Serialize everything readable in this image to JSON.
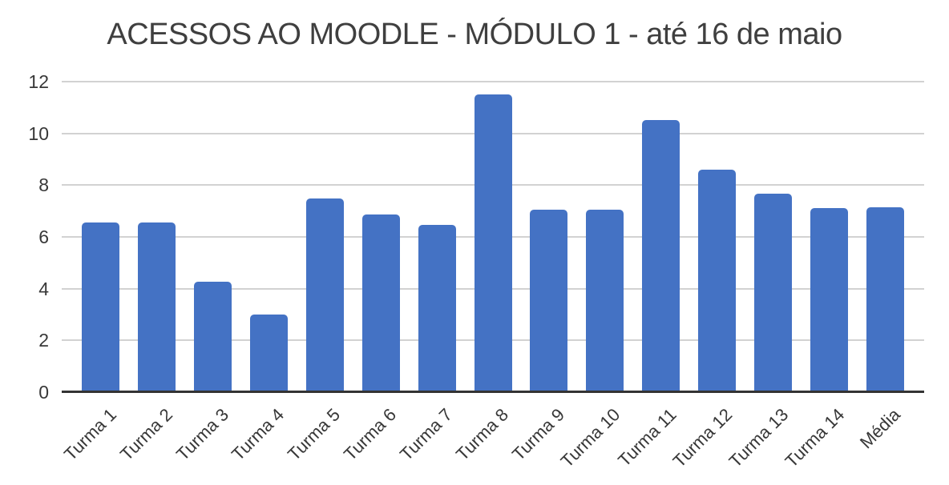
{
  "chart_data": {
    "type": "bar",
    "title": "ACESSOS AO MOODLE - MÓDULO 1 - até 16 de maio",
    "categories": [
      "Turma 1",
      "Turma 2",
      "Turma 3",
      "Turma 4",
      "Turma 5",
      "Turma 6",
      "Turma 7",
      "Turma 8",
      "Turma 9",
      "Turma 10",
      "Turma 11",
      "Turma 12",
      "Turma 13",
      "Turma 14",
      "Média"
    ],
    "values": [
      6.57,
      6.57,
      4.26,
      3.0,
      7.48,
      6.86,
      6.45,
      11.5,
      7.04,
      7.04,
      10.52,
      8.6,
      7.66,
      7.1,
      7.16
    ],
    "xlabel": "",
    "ylabel": "",
    "ylim": [
      0,
      12
    ],
    "yticks": [
      0,
      2,
      4,
      6,
      8,
      10,
      12
    ],
    "grid": true,
    "legend": false
  },
  "colors": {
    "bar": "#4472C4",
    "gridline": "#D2D2D2",
    "axis_line": "#333333",
    "tick_text": "#383838",
    "title_text": "#3F3F3F",
    "background": "#FFFFFF"
  }
}
